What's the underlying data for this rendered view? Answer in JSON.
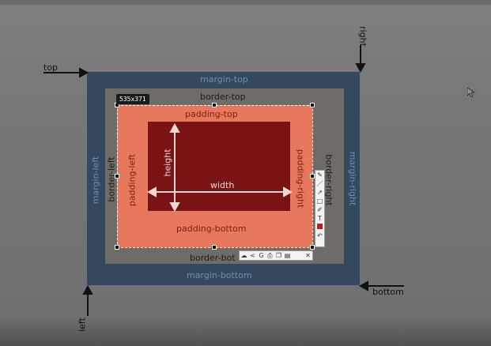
{
  "labels": {
    "margin_top": "margin-top",
    "margin_bottom": "margin-bottom",
    "margin_left": "margin-left",
    "margin_right": "margin-right",
    "border_top": "border-top",
    "border_bottom": "border-bot",
    "border_left": "border-left",
    "border_right": "border-right",
    "padding_top": "padding-top",
    "padding_bottom": "padding-bottom",
    "padding_left": "padding-left",
    "padding_right": "padding-right",
    "height": "height",
    "width": "width",
    "outer_top": "top",
    "outer_right": "right",
    "outer_bottom": "bottom",
    "outer_left": "left"
  },
  "selection": {
    "size_label": "535x371"
  },
  "toolbar_vertical": {
    "items": [
      {
        "icon": "pen-icon",
        "glyph": "✎"
      },
      {
        "icon": "line-icon",
        "glyph": "／"
      },
      {
        "icon": "arrow-icon",
        "glyph": "↗"
      },
      {
        "icon": "rectangle-icon",
        "glyph": "□"
      },
      {
        "icon": "marker-icon",
        "glyph": "✐"
      },
      {
        "icon": "text-icon",
        "glyph": "T"
      },
      {
        "icon": "color-swatch-icon",
        "glyph": ""
      },
      {
        "icon": "undo-icon",
        "glyph": "↶"
      }
    ],
    "selected_color": "#e01010"
  },
  "toolbar_horizontal": {
    "items": [
      {
        "icon": "cloud-upload-icon",
        "glyph": "☁"
      },
      {
        "icon": "share-icon",
        "glyph": "<"
      },
      {
        "icon": "google-icon",
        "glyph": "G"
      },
      {
        "icon": "print-icon",
        "glyph": "⎙"
      },
      {
        "icon": "copy-icon",
        "glyph": "❐"
      },
      {
        "icon": "save-icon",
        "glyph": "▤"
      },
      {
        "icon": "close-icon",
        "glyph": "✕"
      }
    ]
  },
  "colors": {
    "margin": "#34495e",
    "border": "#6f6b67",
    "padding": "#e8785d",
    "content": "#7a1313"
  }
}
